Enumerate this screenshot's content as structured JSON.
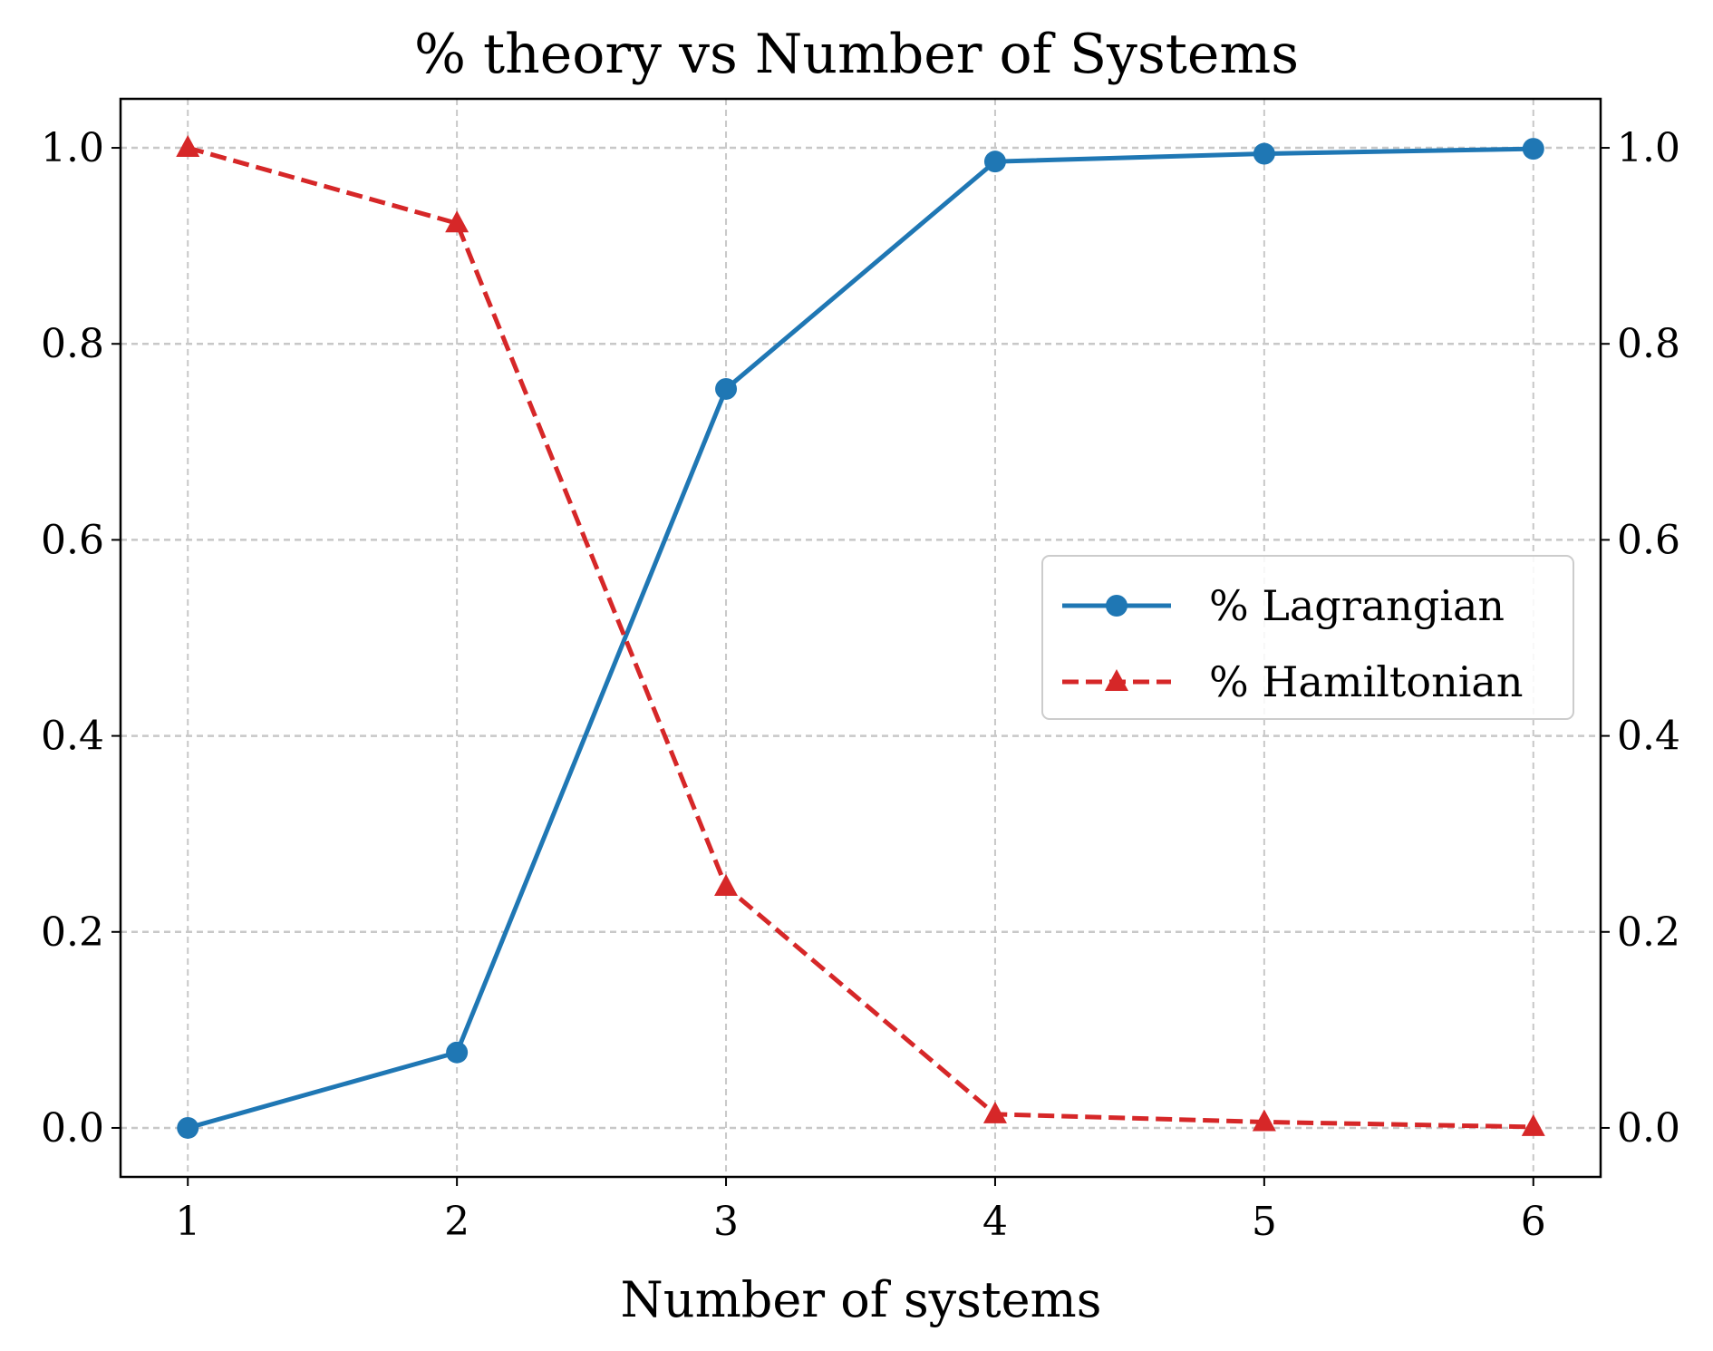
{
  "chart_data": {
    "type": "line",
    "title": "% theory vs Number of Systems",
    "xlabel": "Number of systems",
    "ylabel": "",
    "x": [
      1,
      2,
      3,
      4,
      5,
      6
    ],
    "xlim": [
      0.75,
      6.25
    ],
    "ylim": [
      -0.05,
      1.05
    ],
    "xticks": [
      "1",
      "2",
      "3",
      "4",
      "5",
      "6"
    ],
    "yticks": [
      "0.0",
      "0.2",
      "0.4",
      "0.6",
      "0.8",
      "1.0"
    ],
    "secondary_y_axis_ticks": [
      "0.0",
      "0.2",
      "0.4",
      "0.6",
      "0.8",
      "1.0"
    ],
    "grid": true,
    "legend_position": "center-right",
    "series": [
      {
        "name": "% Lagrangian",
        "values": [
          0.0,
          0.077,
          0.754,
          0.986,
          0.994,
          0.999
        ],
        "color": "#1f77b4",
        "line_style": "solid",
        "marker": "circle"
      },
      {
        "name": "% Hamiltonian",
        "values": [
          1.0,
          0.923,
          0.246,
          0.014,
          0.006,
          0.001
        ],
        "color": "#d62728",
        "line_style": "dashed",
        "marker": "triangle"
      }
    ]
  }
}
